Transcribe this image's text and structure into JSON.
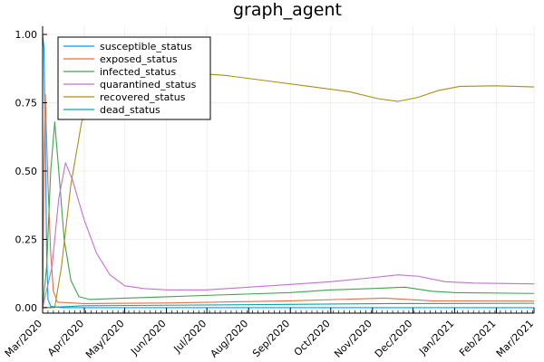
{
  "chart_data": {
    "type": "line",
    "title": "graph_agent",
    "xlabel": "",
    "ylabel": "",
    "x_ticks": [
      "Mar/2020",
      "Apr/2020",
      "May/2020",
      "Jun/2020",
      "Jul/2020",
      "Aug/2020",
      "Sep/2020",
      "Oct/2020",
      "Nov/2020",
      "Dec/2020",
      "Jan/2021",
      "Feb/2021",
      "Mar/2021"
    ],
    "xlim": [
      "2020-03-01",
      "2021-03-01"
    ],
    "ylim": [
      -0.02,
      1.03
    ],
    "y_ticks": [
      0.0,
      0.25,
      0.5,
      0.75,
      1.0
    ],
    "y_tick_labels": [
      "0.00",
      "0.25",
      "0.50",
      "0.75",
      "1.00"
    ],
    "grid": true,
    "legend_position": "top-left",
    "series": [
      {
        "name": "susceptible_status",
        "color": "#009AFA",
        "points": [
          [
            "2020-03-01",
            1.0
          ],
          [
            "2020-03-02",
            0.95
          ],
          [
            "2020-03-03",
            0.62
          ],
          [
            "2020-03-04",
            0.2
          ],
          [
            "2020-03-05",
            0.03
          ],
          [
            "2020-03-07",
            0.005
          ],
          [
            "2020-03-15",
            0.0
          ],
          [
            "2021-03-01",
            0.0
          ]
        ]
      },
      {
        "name": "exposed_status",
        "color": "#E36F47",
        "points": [
          [
            "2020-03-01",
            0.0
          ],
          [
            "2020-03-02",
            0.5
          ],
          [
            "2020-03-03",
            0.78
          ],
          [
            "2020-03-05",
            0.45
          ],
          [
            "2020-03-07",
            0.2
          ],
          [
            "2020-03-09",
            0.06
          ],
          [
            "2020-03-12",
            0.02
          ],
          [
            "2020-04-01",
            0.015
          ],
          [
            "2020-06-01",
            0.017
          ],
          [
            "2020-09-01",
            0.025
          ],
          [
            "2020-11-10",
            0.035
          ],
          [
            "2020-12-15",
            0.025
          ],
          [
            "2021-03-01",
            0.024
          ]
        ]
      },
      {
        "name": "infected_status",
        "color": "#3EA44E",
        "points": [
          [
            "2020-03-01",
            0.0
          ],
          [
            "2020-03-04",
            0.15
          ],
          [
            "2020-03-07",
            0.5
          ],
          [
            "2020-03-10",
            0.68
          ],
          [
            "2020-03-13",
            0.5
          ],
          [
            "2020-03-17",
            0.25
          ],
          [
            "2020-03-22",
            0.1
          ],
          [
            "2020-03-28",
            0.04
          ],
          [
            "2020-04-05",
            0.03
          ],
          [
            "2020-05-01",
            0.035
          ],
          [
            "2020-06-01",
            0.04
          ],
          [
            "2020-07-01",
            0.045
          ],
          [
            "2020-08-01",
            0.05
          ],
          [
            "2020-09-01",
            0.055
          ],
          [
            "2020-10-01",
            0.065
          ],
          [
            "2020-11-01",
            0.07
          ],
          [
            "2020-11-25",
            0.075
          ],
          [
            "2020-12-15",
            0.06
          ],
          [
            "2021-01-01",
            0.055
          ],
          [
            "2021-03-01",
            0.052
          ]
        ]
      },
      {
        "name": "quarantined_status",
        "color": "#C271D2",
        "points": [
          [
            "2020-03-01",
            0.0
          ],
          [
            "2020-03-08",
            0.15
          ],
          [
            "2020-03-13",
            0.4
          ],
          [
            "2020-03-18",
            0.53
          ],
          [
            "2020-03-23",
            0.47
          ],
          [
            "2020-04-01",
            0.32
          ],
          [
            "2020-04-10",
            0.2
          ],
          [
            "2020-04-20",
            0.12
          ],
          [
            "2020-05-01",
            0.08
          ],
          [
            "2020-05-15",
            0.07
          ],
          [
            "2020-06-01",
            0.065
          ],
          [
            "2020-07-01",
            0.065
          ],
          [
            "2020-08-01",
            0.075
          ],
          [
            "2020-09-01",
            0.085
          ],
          [
            "2020-10-01",
            0.095
          ],
          [
            "2020-11-01",
            0.11
          ],
          [
            "2020-11-20",
            0.12
          ],
          [
            "2020-12-05",
            0.115
          ],
          [
            "2020-12-25",
            0.095
          ],
          [
            "2021-01-15",
            0.09
          ],
          [
            "2021-03-01",
            0.087
          ]
        ]
      },
      {
        "name": "recovered_status",
        "color": "#AC8D18",
        "points": [
          [
            "2020-03-01",
            0.0
          ],
          [
            "2020-03-10",
            0.0
          ],
          [
            "2020-03-15",
            0.15
          ],
          [
            "2020-03-22",
            0.45
          ],
          [
            "2020-03-30",
            0.68
          ],
          [
            "2020-04-10",
            0.8
          ],
          [
            "2020-04-25",
            0.84
          ],
          [
            "2020-05-15",
            0.855
          ],
          [
            "2020-06-15",
            0.86
          ],
          [
            "2020-07-15",
            0.85
          ],
          [
            "2020-08-15",
            0.83
          ],
          [
            "2020-09-15",
            0.81
          ],
          [
            "2020-10-15",
            0.79
          ],
          [
            "2020-11-05",
            0.765
          ],
          [
            "2020-11-20",
            0.755
          ],
          [
            "2020-12-05",
            0.77
          ],
          [
            "2020-12-20",
            0.795
          ],
          [
            "2021-01-05",
            0.81
          ],
          [
            "2021-02-01",
            0.812
          ],
          [
            "2021-03-01",
            0.808
          ]
        ]
      },
      {
        "name": "dead_status",
        "color": "#00A9AD",
        "points": [
          [
            "2020-03-01",
            0.0
          ],
          [
            "2020-03-15",
            0.003
          ],
          [
            "2020-04-01",
            0.007
          ],
          [
            "2020-06-01",
            0.009
          ],
          [
            "2020-09-01",
            0.012
          ],
          [
            "2020-11-15",
            0.015
          ],
          [
            "2021-03-01",
            0.016
          ]
        ]
      }
    ]
  }
}
